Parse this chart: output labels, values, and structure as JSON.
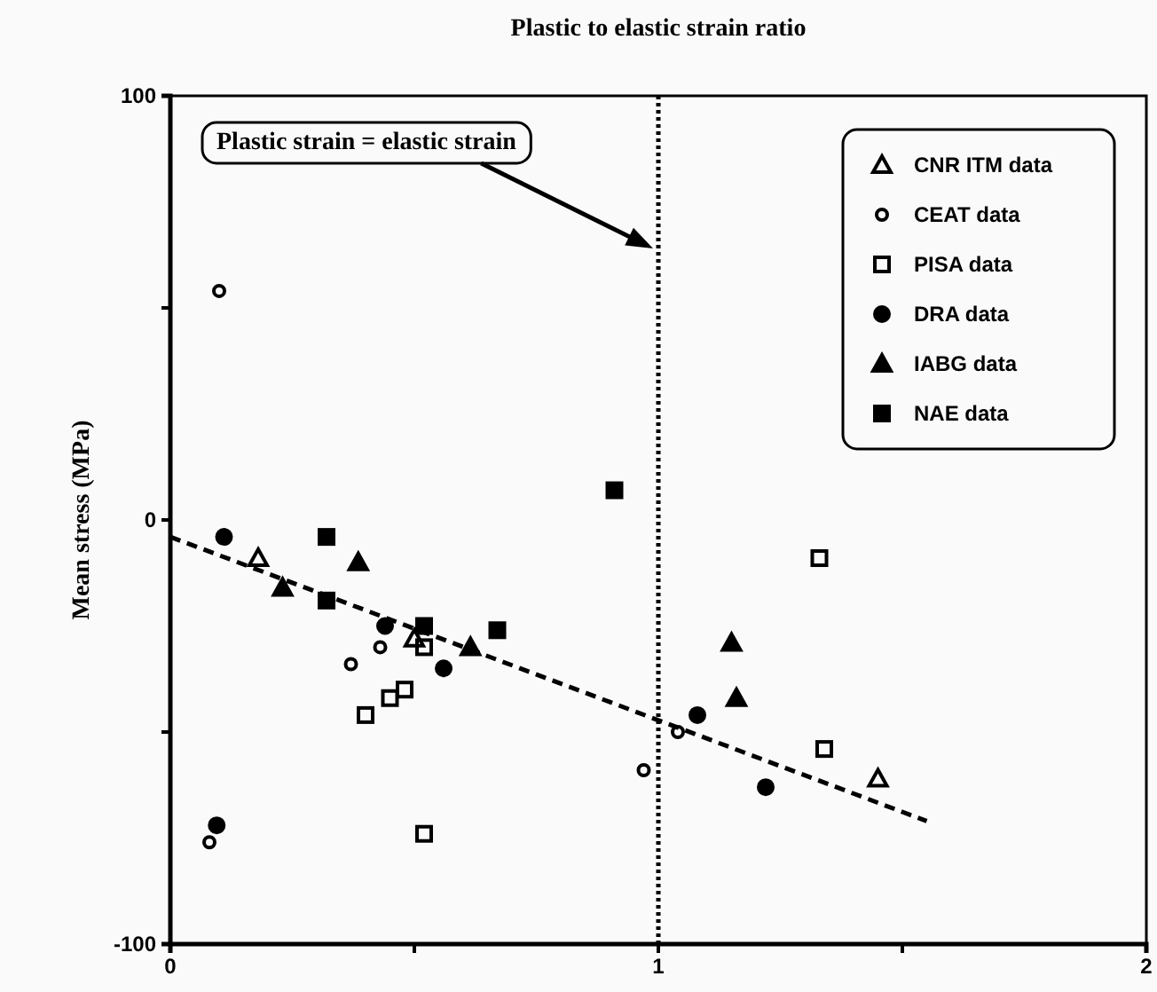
{
  "chart_data": {
    "type": "scatter",
    "title": "Plastic to elastic strain ratio",
    "ylabel": "Mean stress (MPa)",
    "xlim": [
      0,
      2
    ],
    "xticks": [
      0,
      {
        "value": 0.5,
        "label": null
      },
      1,
      {
        "value": 1.5,
        "label": null
      },
      2
    ],
    "ylim": [
      -100,
      100
    ],
    "yticks": [
      -100,
      {
        "value": -50,
        "label": null
      },
      0,
      {
        "value": 50,
        "label": null
      },
      100
    ],
    "legend": "top right",
    "grid": false,
    "series": [
      {
        "name": "CNR ITM data",
        "color": "#000000",
        "marker": "triangle-open",
        "x": [
          0.18,
          0.5,
          1.45
        ],
        "values": [
          -9,
          -28,
          -61
        ]
      },
      {
        "name": "CEAT data",
        "color": "#000000",
        "marker": "circle-open",
        "x": [
          0.1,
          0.43,
          0.37,
          0.08,
          0.97,
          1.04
        ],
        "values": [
          54,
          -30,
          -34,
          -76,
          -59,
          -50
        ]
      },
      {
        "name": "PISA data",
        "color": "#000000",
        "marker": "square-open",
        "x": [
          0.52,
          0.48,
          0.45,
          0.4,
          0.52,
          1.33,
          1.34
        ],
        "values": [
          -30,
          -40,
          -42,
          -46,
          -74,
          -9,
          -54
        ]
      },
      {
        "name": "DRA data",
        "color": "#000000",
        "marker": "circle",
        "x": [
          0.11,
          0.44,
          0.56,
          0.095,
          1.08,
          1.22
        ],
        "values": [
          -4,
          -25,
          -35,
          -72,
          -46,
          -63
        ]
      },
      {
        "name": "IABG data",
        "color": "#000000",
        "marker": "triangle",
        "x": [
          0.23,
          0.385,
          0.615,
          1.15,
          1.16
        ],
        "values": [
          -16,
          -10,
          -30,
          -29,
          -42
        ]
      },
      {
        "name": "NAE data",
        "color": "#000000",
        "marker": "square",
        "x": [
          0.32,
          0.32,
          0.52,
          0.67,
          0.91
        ],
        "values": [
          -4,
          -19,
          -25,
          -26,
          7
        ]
      },
      {
        "type": "line",
        "color": "#000000",
        "line_style": "dashed",
        "marker": "none",
        "x": [
          0,
          1.55
        ],
        "values": [
          -4,
          -71
        ]
      }
    ],
    "ref_lines": [
      {
        "axis": "x",
        "value": 1,
        "color": "#000000",
        "line_style": "dotted"
      }
    ],
    "annotations": [
      "Plastic strain = elastic strain"
    ]
  }
}
